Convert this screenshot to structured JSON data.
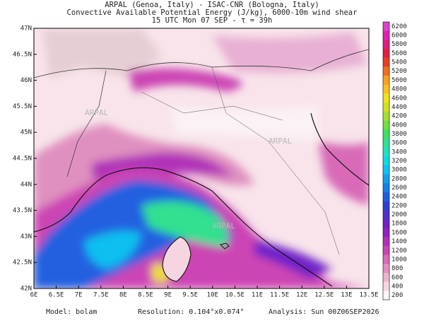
{
  "header": {
    "line1": "ARPAL (Genoa, Italy)  -  ISAC-CNR (Bologna, Italy)",
    "line2": "Convective Available Potential Energy (J/kg), 6000-10m wind shear",
    "line3": "15 UTC Mon 07 SEP  -  τ = 39h"
  },
  "map": {
    "lat_labels": [
      "47N",
      "46.5N",
      "46N",
      "45.5N",
      "45N",
      "44.5N",
      "44N",
      "43.5N",
      "43N",
      "42.5N",
      "42N"
    ],
    "lon_labels": [
      "6E",
      "6.5E",
      "7E",
      "7.5E",
      "8E",
      "8.5E",
      "9E",
      "9.5E",
      "10E",
      "10.5E",
      "11E",
      "11.5E",
      "12E",
      "12.5E",
      "13E",
      "13.5E"
    ],
    "watermark": "ARPAL"
  },
  "colorbar": {
    "labels": [
      "6200",
      "6000",
      "5800",
      "5600",
      "5400",
      "5200",
      "5000",
      "4800",
      "4600",
      "4400",
      "4200",
      "4000",
      "3800",
      "3600",
      "3400",
      "3200",
      "3000",
      "2800",
      "2600",
      "2400",
      "2200",
      "2000",
      "1800",
      "1600",
      "1400",
      "1200",
      "1000",
      "800",
      "600",
      "400",
      "200"
    ],
    "colors": [
      "#e040d0",
      "#e020b0",
      "#e02080",
      "#e02040",
      "#e84020",
      "#f07020",
      "#f8a020",
      "#f8c020",
      "#f0e020",
      "#d0e020",
      "#a0e030",
      "#70e040",
      "#40e060",
      "#30e090",
      "#20e0c0",
      "#10d8e0",
      "#10c0f0",
      "#10a0f0",
      "#1080e8",
      "#2060e0",
      "#3040d8",
      "#5030d0",
      "#7020c8",
      "#9020c0",
      "#b030b8",
      "#cc44b4",
      "#d86ab8",
      "#e090c0",
      "#eab6cc",
      "#f5d5e0",
      "#fdf5f7"
    ]
  },
  "footer": {
    "model": "Model: bolam",
    "resolution": "Resolution: 0.104°x0.074°",
    "analysis": "Analysis: Sun 00Z06SEP2026"
  }
}
